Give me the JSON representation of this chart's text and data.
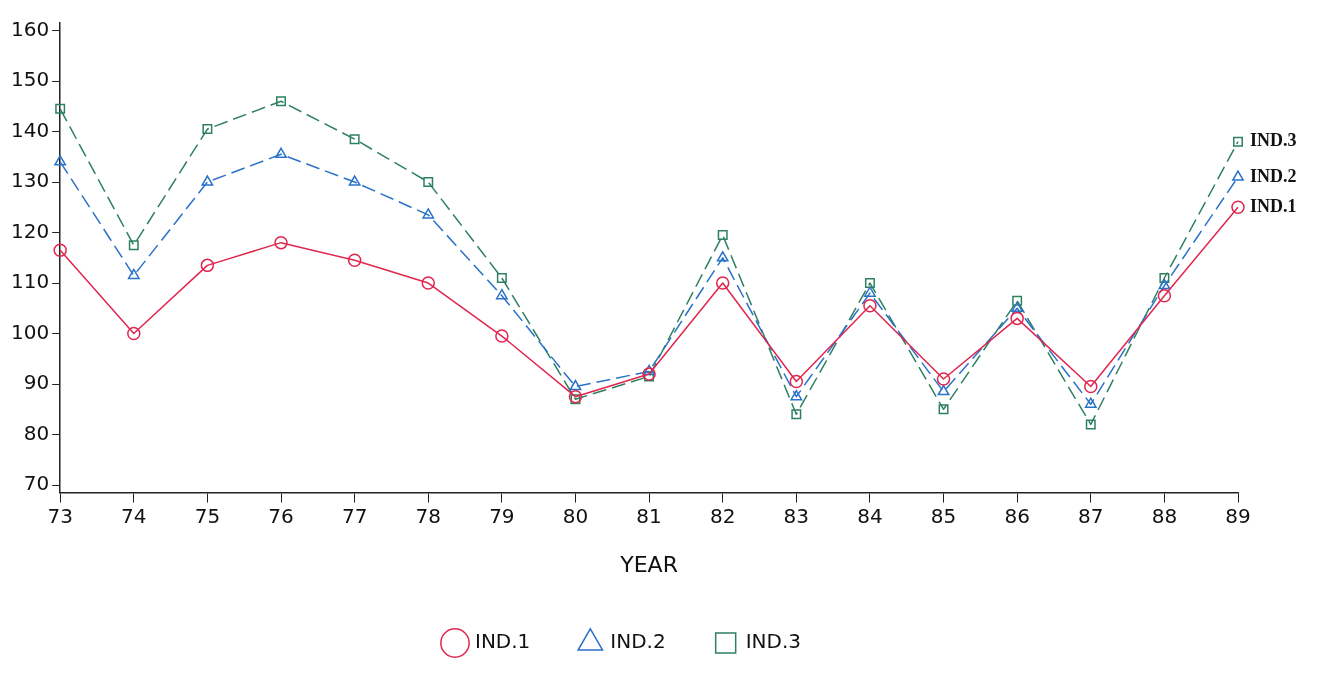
{
  "chart_data": {
    "type": "line",
    "xlabel": "YEAR",
    "categories": [
      "73",
      "74",
      "75",
      "76",
      "77",
      "78",
      "79",
      "80",
      "81",
      "82",
      "83",
      "84",
      "85",
      "86",
      "87",
      "88",
      "89"
    ],
    "ylim": [
      68.5,
      161.5
    ],
    "yticks": [
      70,
      80,
      90,
      100,
      110,
      120,
      130,
      140,
      150,
      160
    ],
    "grid": false,
    "legend": "bottom",
    "series": [
      {
        "name": "IND.1",
        "color": "#e0264f",
        "marker": "circle",
        "line_style": "solid",
        "values": [
          116.5,
          100,
          113.5,
          118,
          114.5,
          110,
          99.5,
          87.5,
          92,
          110,
          90.5,
          105.5,
          91,
          103,
          89.5,
          107.5,
          125
        ]
      },
      {
        "name": "IND.2",
        "color": "#2a72c8",
        "marker": "triangle",
        "line_style": "dashed",
        "values": [
          134,
          111.5,
          130,
          135.5,
          130,
          123.5,
          107.5,
          89.5,
          92.5,
          115,
          87.5,
          108,
          88.5,
          105,
          86,
          109.5,
          131
        ]
      },
      {
        "name": "IND.3",
        "color": "#2e8060",
        "marker": "square",
        "line_style": "dashed",
        "values": [
          144.5,
          117.5,
          140.5,
          146,
          138.5,
          130,
          111,
          87,
          91.5,
          119.5,
          84,
          110,
          85,
          106.5,
          82,
          111,
          138
        ]
      }
    ]
  }
}
